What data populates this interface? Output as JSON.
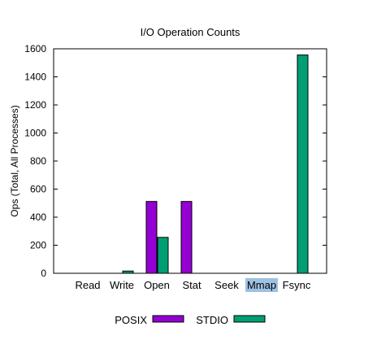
{
  "chart_data": {
    "type": "bar",
    "title": "I/O Operation Counts",
    "xlabel": "",
    "ylabel": "Ops (Total, All Processes)",
    "ylim": [
      0,
      1600
    ],
    "yticks": [
      0,
      200,
      400,
      600,
      800,
      1000,
      1200,
      1400,
      1600
    ],
    "categories": [
      "Read",
      "Write",
      "Open",
      "Stat",
      "Seek",
      "Mmap",
      "Fsync"
    ],
    "highlighted_category": "Mmap",
    "series": [
      {
        "name": "POSIX",
        "color": "#9400d3",
        "values": [
          0,
          0,
          512,
          512,
          0,
          0,
          0
        ]
      },
      {
        "name": "STDIO",
        "color": "#009e73",
        "values": [
          0,
          16,
          256,
          0,
          0,
          0,
          1556
        ]
      }
    ],
    "legend_position": "bottom",
    "grid": false
  }
}
